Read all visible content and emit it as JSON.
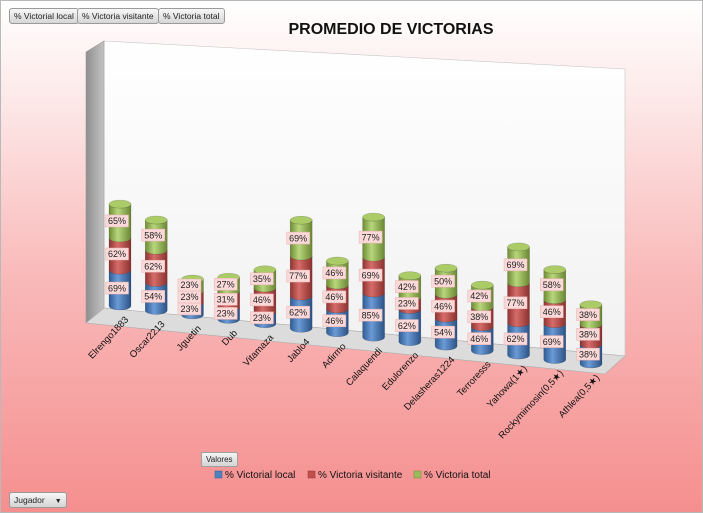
{
  "ui": {
    "field_buttons": [
      "% Victorial local",
      "% Victoria visitante",
      "% Victoria total"
    ],
    "values_button": "Valores",
    "filter_label": "Jugador",
    "filter_caret": "▼"
  },
  "colors": {
    "local": "#4f81bd",
    "visitante": "#c0504d",
    "total": "#9bbb59"
  },
  "chart_data": {
    "type": "bar",
    "stacked": true,
    "style": "3d-cylinder",
    "title": "PROMEDIO DE VICTORIAS",
    "legend_position": "bottom",
    "categories": [
      "Elrengo1883",
      "Oscar2213",
      "Jguetin",
      "Dub",
      "Vitamaza",
      "Jablo4",
      "Adirmo",
      "Calaquendi",
      "Edulorenzo",
      "Delasheras1224",
      "Terroresss",
      "Yahowa(1★)",
      "Rockymimosin(0,5★)",
      "Athlea(0,5★)"
    ],
    "series": [
      {
        "name": "% Victorial local",
        "values": [
          69,
          54,
          23,
          23,
          23,
          62,
          46,
          85,
          62,
          54,
          46,
          62,
          69,
          38
        ],
        "labels": [
          "69%",
          "54%",
          "23%",
          "23%",
          "23%",
          "62%",
          "46%",
          "85%",
          "62%",
          "54%",
          "46%",
          "62%",
          "69%",
          "38%"
        ]
      },
      {
        "name": "% Victoria visitante",
        "values": [
          62,
          62,
          23,
          31,
          46,
          77,
          46,
          69,
          23,
          46,
          38,
          77,
          46,
          38
        ],
        "labels": [
          "62%",
          "62%",
          "23%",
          "31%",
          "46%",
          "77%",
          "46%",
          "69%",
          "23%",
          "46%",
          "38%",
          "77%",
          "46%",
          "38%"
        ]
      },
      {
        "name": "% Victoria total",
        "values": [
          65,
          58,
          23,
          27,
          35,
          69,
          46,
          77,
          42,
          50,
          42,
          69,
          58,
          38
        ],
        "labels": [
          "65%",
          "58%",
          "23%",
          "27%",
          "35%",
          "69%",
          "46%",
          "77%",
          "42%",
          "50%",
          "42%",
          "69%",
          "58%",
          "38%"
        ]
      }
    ]
  }
}
